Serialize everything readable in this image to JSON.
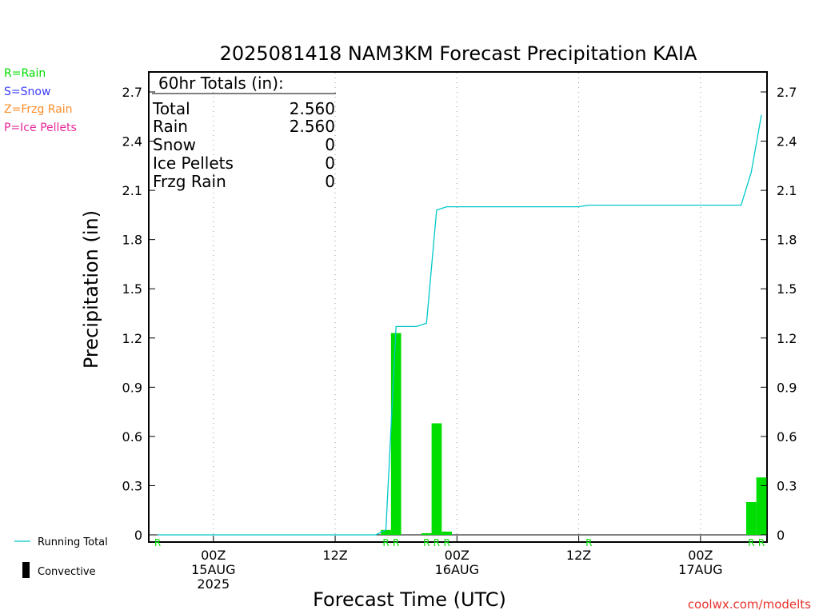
{
  "chart_data": {
    "type": "bar",
    "title": "2025081418 NAM3KM Forecast Precipitation KAIA",
    "xlabel": "Forecast Time (UTC)",
    "ylabel": "Precipitation (in)",
    "ylim": [
      0,
      2.8
    ],
    "yticks": [
      0,
      0.3,
      0.6,
      0.9,
      1.2,
      1.5,
      1.8,
      2.1,
      2.4,
      2.7
    ],
    "ytick_labels": [
      "0",
      "0.3",
      "0.6",
      "0.9",
      "1.2",
      "1.5",
      "1.8",
      "2.1",
      "2.4",
      "2.7"
    ],
    "xlim_hours": [
      0,
      60
    ],
    "x_ticks": [
      {
        "hour": 6,
        "lines": [
          "00Z",
          "15AUG",
          "2025"
        ]
      },
      {
        "hour": 18,
        "lines": [
          "12Z"
        ]
      },
      {
        "hour": 30,
        "lines": [
          "00Z",
          "16AUG"
        ]
      },
      {
        "hour": 42,
        "lines": [
          "12Z"
        ]
      },
      {
        "hour": 54,
        "lines": [
          "00Z",
          "17AUG"
        ]
      }
    ],
    "grid": "vertical dotted at tick hours",
    "bars": {
      "name": "Convective",
      "color": "#00dd00",
      "hours": [
        23,
        24,
        27,
        28,
        29,
        59,
        60
      ],
      "values": [
        0.03,
        1.23,
        0.01,
        0.68,
        0.02,
        0.2,
        0.35
      ]
    },
    "running_total": {
      "name": "Running Total",
      "color": "#00c8c8",
      "points": [
        [
          0.5,
          0.0
        ],
        [
          22,
          0.0
        ],
        [
          23,
          0.03
        ],
        [
          24,
          1.27
        ],
        [
          26,
          1.27
        ],
        [
          27,
          1.29
        ],
        [
          28,
          1.98
        ],
        [
          29,
          2.0
        ],
        [
          42,
          2.0
        ],
        [
          43,
          2.01
        ],
        [
          58,
          2.01
        ],
        [
          59,
          2.21
        ],
        [
          60,
          2.56
        ]
      ]
    },
    "precip_type_markers": [
      {
        "hour": 0.5,
        "label": "R"
      },
      {
        "hour": 23,
        "label": "R"
      },
      {
        "hour": 24,
        "label": "R"
      },
      {
        "hour": 27,
        "label": "R"
      },
      {
        "hour": 28,
        "label": "R"
      },
      {
        "hour": 29,
        "label": "R"
      },
      {
        "hour": 43,
        "label": "R"
      },
      {
        "hour": 59,
        "label": "R"
      },
      {
        "hour": 60,
        "label": "R"
      }
    ]
  },
  "totals_box": {
    "header": "60hr Totals (in):",
    "rows": [
      {
        "label": "Total",
        "value": "2.560"
      },
      {
        "label": "Rain",
        "value": "2.560"
      },
      {
        "label": "Snow",
        "value": "0"
      },
      {
        "label": "Ice Pellets",
        "value": "0"
      },
      {
        "label": "Frzg Rain",
        "value": "0"
      }
    ]
  },
  "type_legend": [
    {
      "text": "R=Rain",
      "color": "#00dd00"
    },
    {
      "text": "S=Snow",
      "color": "#3c3cff"
    },
    {
      "text": "Z=Frzg Rain",
      "color": "#ff8c28"
    },
    {
      "text": "P=Ice Pellets",
      "color": "#e6289b"
    }
  ],
  "series_legend": {
    "running_total": "Running Total",
    "convective": "Convective"
  },
  "credit": "coolwx.com/modelts"
}
